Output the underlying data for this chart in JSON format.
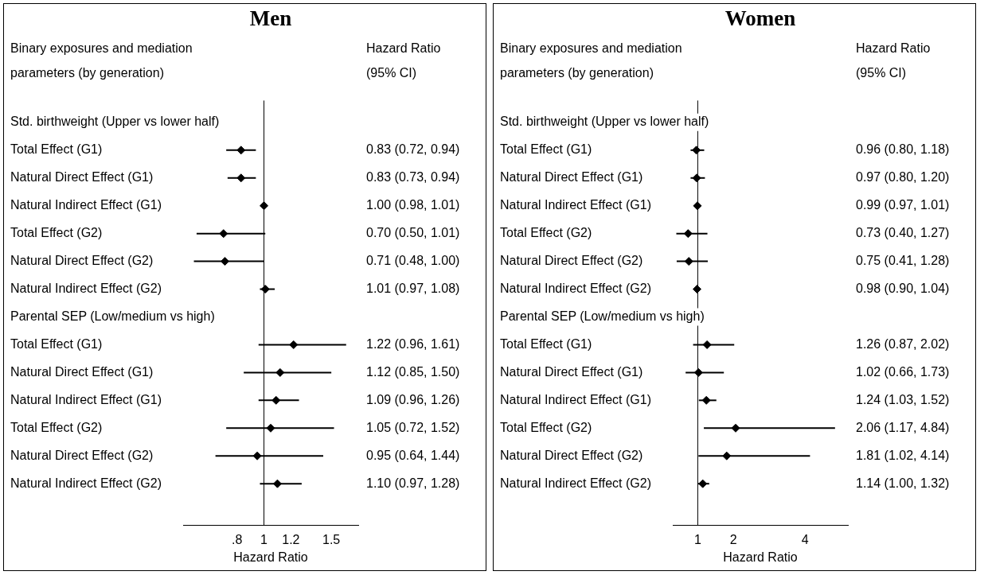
{
  "chart_data": [
    {
      "type": "scatter",
      "orientation": "horizontal",
      "title": "Men",
      "xlabel": "Hazard Ratio",
      "marker": "diamond",
      "grid": false,
      "legend": false,
      "tick_labels": "x",
      "annotations": [
        "Binary exposures and mediation parameters (by generation)",
        "Hazard Ratio (95% CI)"
      ],
      "categories": [
        "Std. birthweight (Upper vs lower half)",
        "Total Effect (G1)",
        "Natural Direct Effect (G1)",
        "Natural Indirect Effect (G1)",
        "Total Effect (G2)",
        "Natural Direct Effect (G2)",
        "Natural Indirect Effect (G2)",
        "Parental SEP (Low/medium vs high)",
        "Total Effect (G1)",
        "Natural Direct Effect (G1)",
        "Natural Indirect Effect (G1)",
        "Total Effect (G2)",
        "Natural Direct Effect (G2)",
        "Natural Indirect Effect (G2)"
      ],
      "series": [
        {
          "color": "#000000",
          "values": [
            null,
            0.83,
            0.83,
            1.0,
            0.7,
            0.71,
            1.01,
            null,
            1.22,
            1.12,
            1.09,
            1.05,
            0.95,
            1.1
          ],
          "errors": [
            null,
            [
              0.72,
              0.94
            ],
            [
              0.73,
              0.94
            ],
            [
              0.98,
              1.01
            ],
            [
              0.5,
              1.01
            ],
            [
              0.48,
              1.0
            ],
            [
              0.97,
              1.08
            ],
            null,
            [
              0.96,
              1.61
            ],
            [
              0.85,
              1.5
            ],
            [
              0.96,
              1.26
            ],
            [
              0.72,
              1.52
            ],
            [
              0.64,
              1.44
            ],
            [
              0.97,
              1.28
            ]
          ],
          "value_labels": [
            null,
            "0.83 (0.72, 0.94)",
            "0.83 (0.73, 0.94)",
            "1.00 (0.98, 1.01)",
            "0.70 (0.50, 1.01)",
            "0.71 (0.48, 1.00)",
            "1.01 (0.97, 1.08)",
            null,
            "1.22 (0.96, 1.61)",
            "1.12 (0.85, 1.50)",
            "1.09 (0.96, 1.26)",
            "1.05 (0.72, 1.52)",
            "0.95 (0.64, 1.44)",
            "1.10 (0.97, 1.28)"
          ]
        }
      ],
      "xlim": [
        0.4,
        1.7
      ],
      "xticks": [
        {
          "value": 0.8,
          "label": ".8"
        },
        1,
        1.2,
        1.5
      ],
      "ref_lines": [
        {
          "axis": "x",
          "value": 1
        }
      ]
    },
    {
      "type": "scatter",
      "orientation": "horizontal",
      "title": "Women",
      "xlabel": "Hazard Ratio",
      "marker": "diamond",
      "grid": false,
      "legend": false,
      "tick_labels": "x",
      "annotations": [
        "Binary exposures and mediation parameters (by generation)",
        "Hazard Ratio (95% CI)"
      ],
      "categories": [
        "Std. birthweight (Upper vs lower half)",
        "Total Effect (G1)",
        "Natural Direct Effect (G1)",
        "Natural Indirect Effect (G1)",
        "Total Effect (G2)",
        "Natural Direct Effect (G2)",
        "Natural Indirect Effect (G2)",
        "Parental SEP (Low/medium vs high)",
        "Total Effect (G1)",
        "Natural Direct Effect (G1)",
        "Natural Indirect Effect (G1)",
        "Total Effect (G2)",
        "Natural Direct Effect (G2)",
        "Natural Indirect Effect (G2)"
      ],
      "series": [
        {
          "color": "#000000",
          "values": [
            null,
            0.96,
            0.97,
            0.99,
            0.73,
            0.75,
            0.98,
            null,
            1.26,
            1.02,
            1.24,
            2.06,
            1.81,
            1.14
          ],
          "errors": [
            null,
            [
              0.8,
              1.18
            ],
            [
              0.8,
              1.2
            ],
            [
              0.97,
              1.01
            ],
            [
              0.4,
              1.27
            ],
            [
              0.41,
              1.28
            ],
            [
              0.9,
              1.04
            ],
            null,
            [
              0.87,
              2.02
            ],
            [
              0.66,
              1.73
            ],
            [
              1.03,
              1.52
            ],
            [
              1.17,
              4.84
            ],
            [
              1.02,
              4.14
            ],
            [
              1.0,
              1.32
            ]
          ],
          "value_labels": [
            null,
            "0.96 (0.80, 1.18)",
            "0.97 (0.80, 1.20)",
            "0.99 (0.97, 1.01)",
            "0.73 (0.40, 1.27)",
            "0.75 (0.41, 1.28)",
            "0.98 (0.90, 1.04)",
            null,
            "1.26 (0.87, 2.02)",
            "1.02 (0.66, 1.73)",
            "1.24 (1.03, 1.52)",
            "2.06 (1.17, 4.84)",
            "1.81 (1.02, 4.14)",
            "1.14 (1.00, 1.32)"
          ]
        }
      ],
      "xlim": [
        0.3,
        5.2
      ],
      "xticks": [
        1,
        2,
        4
      ],
      "ref_lines": [
        {
          "axis": "x",
          "value": 1
        }
      ]
    }
  ]
}
